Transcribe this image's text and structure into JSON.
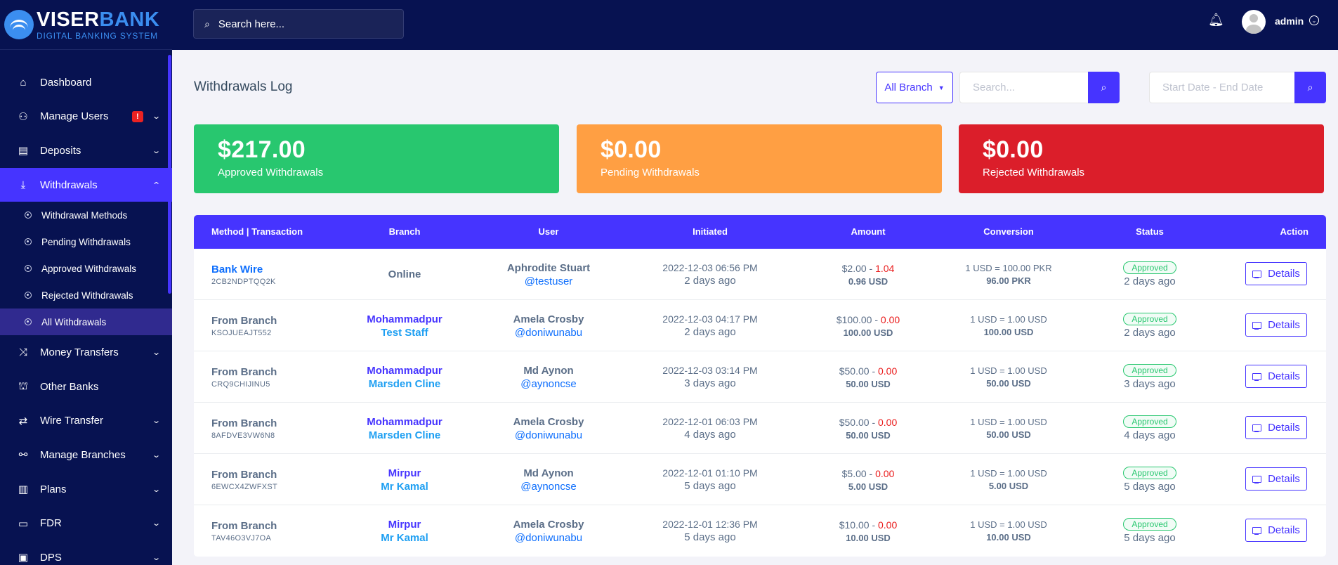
{
  "brand": {
    "title_a": "VISER",
    "title_b": "BANK",
    "subtitle": "DIGITAL BANKING SYSTEM"
  },
  "topbar": {
    "search_placeholder": "Search here...",
    "admin_name": "admin"
  },
  "sidebar": {
    "items": [
      {
        "label": "Dashboard",
        "icon": "home-icon"
      },
      {
        "label": "Manage Users",
        "icon": "users-icon",
        "badge": "!"
      },
      {
        "label": "Deposits",
        "icon": "deposit-icon"
      },
      {
        "label": "Withdrawals",
        "icon": "withdraw-icon"
      },
      {
        "label": "Money Transfers",
        "icon": "shuffle-icon"
      },
      {
        "label": "Other Banks",
        "icon": "bank-icon"
      },
      {
        "label": "Wire Transfer",
        "icon": "wire-icon"
      },
      {
        "label": "Manage Branches",
        "icon": "branches-icon"
      },
      {
        "label": "Plans",
        "icon": "chart-icon"
      },
      {
        "label": "FDR",
        "icon": "fdr-icon"
      },
      {
        "label": "DPS",
        "icon": "dps-icon"
      }
    ],
    "withdrawal_sub": [
      "Withdrawal Methods",
      "Pending Withdrawals",
      "Approved Withdrawals",
      "Rejected Withdrawals",
      "All Withdrawals"
    ]
  },
  "page": {
    "title": "Withdrawals Log",
    "branch_filter": "All Branch",
    "search_placeholder": "Search...",
    "date_placeholder": "Start Date - End Date"
  },
  "widgets": [
    {
      "amount": "$217.00",
      "label": "Approved Withdrawals",
      "color": "#28c76f"
    },
    {
      "amount": "$0.00",
      "label": "Pending Withdrawals",
      "color": "#ff9f43"
    },
    {
      "amount": "$0.00",
      "label": "Rejected Withdrawals",
      "color": "#db1e2a"
    }
  ],
  "table": {
    "headers": [
      "Method | Transaction",
      "Branch",
      "User",
      "Initiated",
      "Amount",
      "Conversion",
      "Status",
      "Action"
    ],
    "details_label": "Details",
    "rows": [
      {
        "method": "Bank Wire",
        "trx": "2CB2NDPTQQ2K",
        "branch": "Online",
        "staff": "",
        "user_name": "Aphrodite Stuart",
        "username": "@testuser",
        "initiated": "2022-12-03 06:56 PM",
        "ago": "2 days ago",
        "amount": "$2.00 - ",
        "charge": "1.04",
        "receive": "0.96 USD",
        "conv_rate": "1 USD = 100.00 PKR",
        "conv_amount": "96.00 PKR",
        "status": "Approved",
        "status_ago": "2 days ago"
      },
      {
        "method": "From Branch",
        "trx": "KSOJUEAJT552",
        "branch": "Mohammadpur",
        "staff": "Test Staff",
        "user_name": "Amela Crosby",
        "username": "@doniwunabu",
        "initiated": "2022-12-03 04:17 PM",
        "ago": "2 days ago",
        "amount": "$100.00 - ",
        "charge": "0.00",
        "receive": "100.00 USD",
        "conv_rate": "1 USD = 1.00 USD",
        "conv_amount": "100.00 USD",
        "status": "Approved",
        "status_ago": "2 days ago"
      },
      {
        "method": "From Branch",
        "trx": "CRQ9CHIJINU5",
        "branch": "Mohammadpur",
        "staff": "Marsden Cline",
        "user_name": "Md Aynon",
        "username": "@aynoncse",
        "initiated": "2022-12-03 03:14 PM",
        "ago": "3 days ago",
        "amount": "$50.00 - ",
        "charge": "0.00",
        "receive": "50.00 USD",
        "conv_rate": "1 USD = 1.00 USD",
        "conv_amount": "50.00 USD",
        "status": "Approved",
        "status_ago": "3 days ago"
      },
      {
        "method": "From Branch",
        "trx": "8AFDVE3VW6N8",
        "branch": "Mohammadpur",
        "staff": "Marsden Cline",
        "user_name": "Amela Crosby",
        "username": "@doniwunabu",
        "initiated": "2022-12-01 06:03 PM",
        "ago": "4 days ago",
        "amount": "$50.00 - ",
        "charge": "0.00",
        "receive": "50.00 USD",
        "conv_rate": "1 USD = 1.00 USD",
        "conv_amount": "50.00 USD",
        "status": "Approved",
        "status_ago": "4 days ago"
      },
      {
        "method": "From Branch",
        "trx": "6EWCX4ZWFXST",
        "branch": "Mirpur",
        "staff": "Mr Kamal",
        "user_name": "Md Aynon",
        "username": "@aynoncse",
        "initiated": "2022-12-01 01:10 PM",
        "ago": "5 days ago",
        "amount": "$5.00 - ",
        "charge": "0.00",
        "receive": "5.00 USD",
        "conv_rate": "1 USD = 1.00 USD",
        "conv_amount": "5.00 USD",
        "status": "Approved",
        "status_ago": "5 days ago"
      },
      {
        "method": "From Branch",
        "trx": "TAV46O3VJ7OA",
        "branch": "Mirpur",
        "staff": "Mr Kamal",
        "user_name": "Amela Crosby",
        "username": "@doniwunabu",
        "initiated": "2022-12-01 12:36 PM",
        "ago": "5 days ago",
        "amount": "$10.00 - ",
        "charge": "0.00",
        "receive": "10.00 USD",
        "conv_rate": "1 USD = 1.00 USD",
        "conv_amount": "10.00 USD",
        "status": "Approved",
        "status_ago": "5 days ago"
      }
    ]
  }
}
